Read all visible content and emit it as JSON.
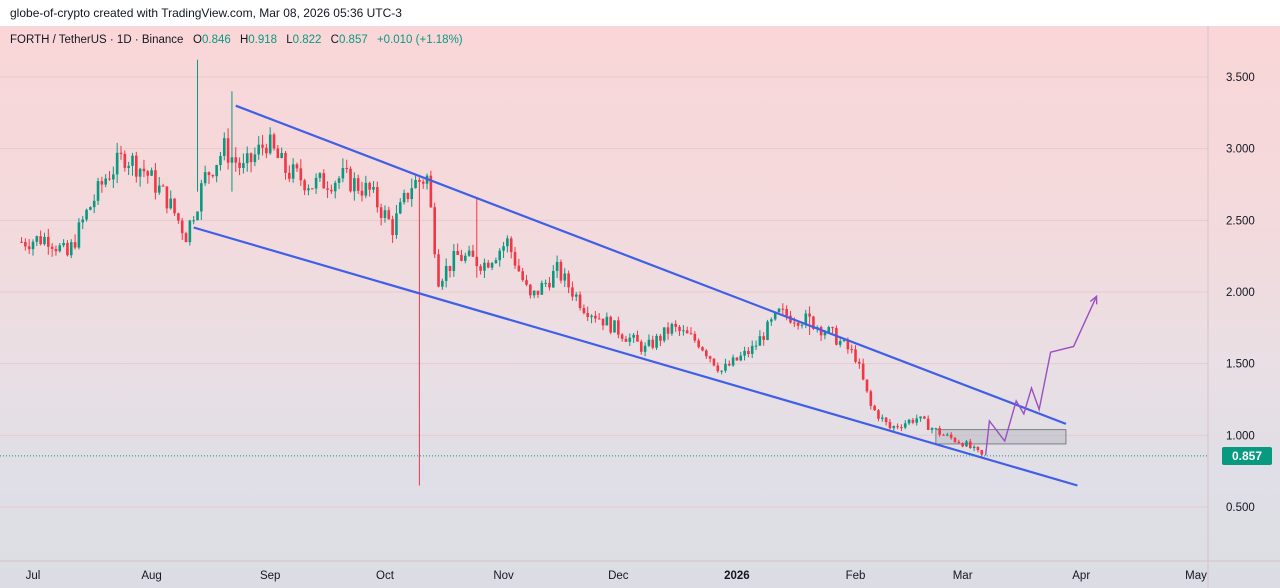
{
  "header": {
    "attribution": "globe-of-crypto created with TradingView.com, Mar 08, 2026 05:36 UTC-3"
  },
  "legend": {
    "symbol": "FORTH / TetherUS · 1D · Binance",
    "open_label": "O",
    "open": "0.846",
    "high_label": "H",
    "high": "0.918",
    "low_label": "L",
    "low": "0.822",
    "close_label": "C",
    "close": "0.857",
    "change": "+0.010 (+1.18%)"
  },
  "last_price": "0.857",
  "colors": {
    "up": "#089981",
    "down": "#f23645",
    "trendline": "#3f5fe8",
    "projection": "#9c4fc1",
    "zone": "#b9bcc4"
  },
  "chart_data": {
    "type": "candlestick",
    "symbol": "FORTH / TetherUS",
    "interval": "1D",
    "exchange": "Binance",
    "y_ticks": [
      "3.500",
      "3.000",
      "2.500",
      "2.000",
      "1.500",
      "1.000",
      "0.500"
    ],
    "y_tick_values": [
      3.5,
      3.0,
      2.5,
      2.0,
      1.5,
      1.0,
      0.5
    ],
    "ylim": [
      0.2,
      3.8
    ],
    "x_ticks": [
      "Jul",
      "Aug",
      "Sep",
      "Oct",
      "Nov",
      "Dec",
      "2026",
      "Feb",
      "Mar",
      "Apr",
      "May"
    ],
    "x_tick_dates": [
      "2025-07-01",
      "2025-08-01",
      "2025-09-01",
      "2025-10-01",
      "2025-11-01",
      "2025-12-01",
      "2026-01-01",
      "2026-02-01",
      "2026-03-01",
      "2026-04-01",
      "2026-05-01"
    ],
    "price_path": [
      [
        "2025-06-28",
        2.35
      ],
      [
        "2025-07-05",
        2.38
      ],
      [
        "2025-07-10",
        2.25
      ],
      [
        "2025-07-15",
        2.55
      ],
      [
        "2025-07-20",
        2.8
      ],
      [
        "2025-07-25",
        2.95
      ],
      [
        "2025-07-30",
        2.85
      ],
      [
        "2025-08-05",
        2.65
      ],
      [
        "2025-08-10",
        2.4
      ],
      [
        "2025-08-15",
        2.8
      ],
      [
        "2025-08-20",
        3.0
      ],
      [
        "2025-08-25",
        2.85
      ],
      [
        "2025-08-31",
        3.05
      ],
      [
        "2025-09-05",
        2.85
      ],
      [
        "2025-09-12",
        2.75
      ],
      [
        "2025-09-20",
        2.8
      ],
      [
        "2025-09-27",
        2.7
      ],
      [
        "2025-10-03",
        2.45
      ],
      [
        "2025-10-08",
        2.75
      ],
      [
        "2025-10-12",
        2.8
      ],
      [
        "2025-10-15",
        2.1
      ],
      [
        "2025-10-20",
        2.25
      ],
      [
        "2025-10-27",
        2.2
      ],
      [
        "2025-11-02",
        2.35
      ],
      [
        "2025-11-08",
        1.95
      ],
      [
        "2025-11-15",
        2.15
      ],
      [
        "2025-11-22",
        1.9
      ],
      [
        "2025-11-30",
        1.75
      ],
      [
        "2025-12-08",
        1.6
      ],
      [
        "2025-12-15",
        1.75
      ],
      [
        "2025-12-22",
        1.65
      ],
      [
        "2025-12-28",
        1.45
      ],
      [
        "2026-01-05",
        1.6
      ],
      [
        "2026-01-12",
        1.85
      ],
      [
        "2026-01-20",
        1.8
      ],
      [
        "2026-01-26",
        1.7
      ],
      [
        "2026-02-01",
        1.55
      ],
      [
        "2026-02-05",
        1.2
      ],
      [
        "2026-02-10",
        1.05
      ],
      [
        "2026-02-17",
        1.12
      ],
      [
        "2026-02-24",
        1.0
      ],
      [
        "2026-03-01",
        0.95
      ],
      [
        "2026-03-06",
        0.857
      ]
    ],
    "wicks": [
      {
        "date": "2025-08-13",
        "high": 3.62,
        "low": 2.7
      },
      {
        "date": "2025-08-22",
        "high": 3.4,
        "low": 2.7
      },
      {
        "date": "2025-10-10",
        "high": 2.8,
        "low": 0.65
      },
      {
        "date": "2025-10-25",
        "high": 2.65,
        "low": 2.1
      },
      {
        "date": "2026-01-20",
        "high": 1.9,
        "low": 1.7
      }
    ],
    "upper_trendline": [
      [
        "2025-08-23",
        3.3
      ],
      [
        "2026-03-28",
        1.08
      ]
    ],
    "lower_trendline": [
      [
        "2025-08-12",
        2.45
      ],
      [
        "2026-03-31",
        0.65
      ]
    ],
    "zone": {
      "from": "2026-02-22",
      "to": "2026-03-28",
      "high": 1.04,
      "low": 0.94
    },
    "projection": [
      [
        "2026-03-07",
        0.86
      ],
      [
        "2026-03-08",
        1.1
      ],
      [
        "2026-03-12",
        0.96
      ],
      [
        "2026-03-15",
        1.24
      ],
      [
        "2026-03-17",
        1.15
      ],
      [
        "2026-03-19",
        1.33
      ],
      [
        "2026-03-21",
        1.18
      ],
      [
        "2026-03-24",
        1.58
      ],
      [
        "2026-03-30",
        1.62
      ],
      [
        "2026-04-05",
        1.97
      ]
    ],
    "last_price": 0.857
  }
}
